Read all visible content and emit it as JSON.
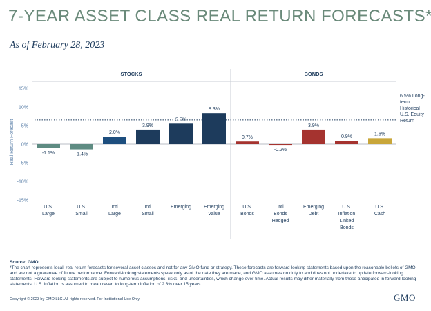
{
  "header": {
    "title": "7-YEAR ASSET CLASS REAL RETURN FORECASTS*",
    "subtitle": "As of February 28, 2023"
  },
  "chart_data": {
    "type": "bar",
    "groups": [
      {
        "label": "STOCKS",
        "category_indices": [
          0,
          1,
          2,
          3,
          4,
          5
        ]
      },
      {
        "label": "BONDS",
        "category_indices": [
          6,
          7,
          8,
          9,
          10
        ]
      }
    ],
    "categories": [
      [
        "U.S.",
        "Large"
      ],
      [
        "U.S.",
        "Small"
      ],
      [
        "Intl",
        "Large"
      ],
      [
        "Intl",
        "Small"
      ],
      [
        "Emerging"
      ],
      [
        "Emerging",
        "Value"
      ],
      [
        "U.S.",
        "Bonds"
      ],
      [
        "Intl",
        "Bonds",
        "Hedged"
      ],
      [
        "Emerging",
        "Debt"
      ],
      [
        "U.S.",
        "Inflation",
        "Linked",
        "Bonds"
      ],
      [
        "U.S.",
        "Cash"
      ]
    ],
    "values": [
      -1.1,
      -1.4,
      2.0,
      3.9,
      5.5,
      8.3,
      0.7,
      -0.2,
      3.9,
      0.9,
      1.6
    ],
    "value_labels": [
      "-1.1%",
      "-1.4%",
      "2.0%",
      "3.9%",
      "5.5%",
      "8.3%",
      "0.7%",
      "-0.2%",
      "3.9%",
      "0.9%",
      "1.6%"
    ],
    "colors": [
      "#5e8b82",
      "#5e8b82",
      "#1d4e7e",
      "#1d3b5c",
      "#1d3b5c",
      "#1d3b5c",
      "#a5332f",
      "#a5332f",
      "#a5332f",
      "#a5332f",
      "#c8a63a"
    ],
    "ylabel": "Real Return Forecast",
    "ylim": [
      -15,
      15
    ],
    "yticks": [
      -15,
      -10,
      -5,
      0,
      5,
      10,
      15
    ],
    "ytick_labels": [
      "-15%",
      "-10%",
      "-5%",
      "0%",
      "5%",
      "10%",
      "15%"
    ],
    "reference_line": {
      "value": 6.5,
      "label_lines": [
        "6.5% Long-",
        "term",
        "Historical",
        "U.S. Equity",
        "Return"
      ]
    }
  },
  "footer": {
    "source": "Source: GMO",
    "note": "*The chart represents local, real return forecasts for several asset classes and not for any GMO fund or strategy. These forecasts are forward-looking statements based upon the reasonable beliefs of GMO and are not a guarantee of future performance. Forward-looking statements speak only as of the date they are made, and GMO assumes no duty to and does not undertake to update forward-looking statements. Forward-looking statements are subject to numerous assumptions, risks, and uncertainties, which change over time. Actual results may differ materially from those anticipated in forward-looking statements. U.S. inflation is assumed to mean revert to long-term inflation of 2.3% over 15 years.",
    "copyright": "Copyright © 2023 by GMO LLC. All rights reserved. For Institutional Use Only.",
    "logo": "GMO"
  }
}
